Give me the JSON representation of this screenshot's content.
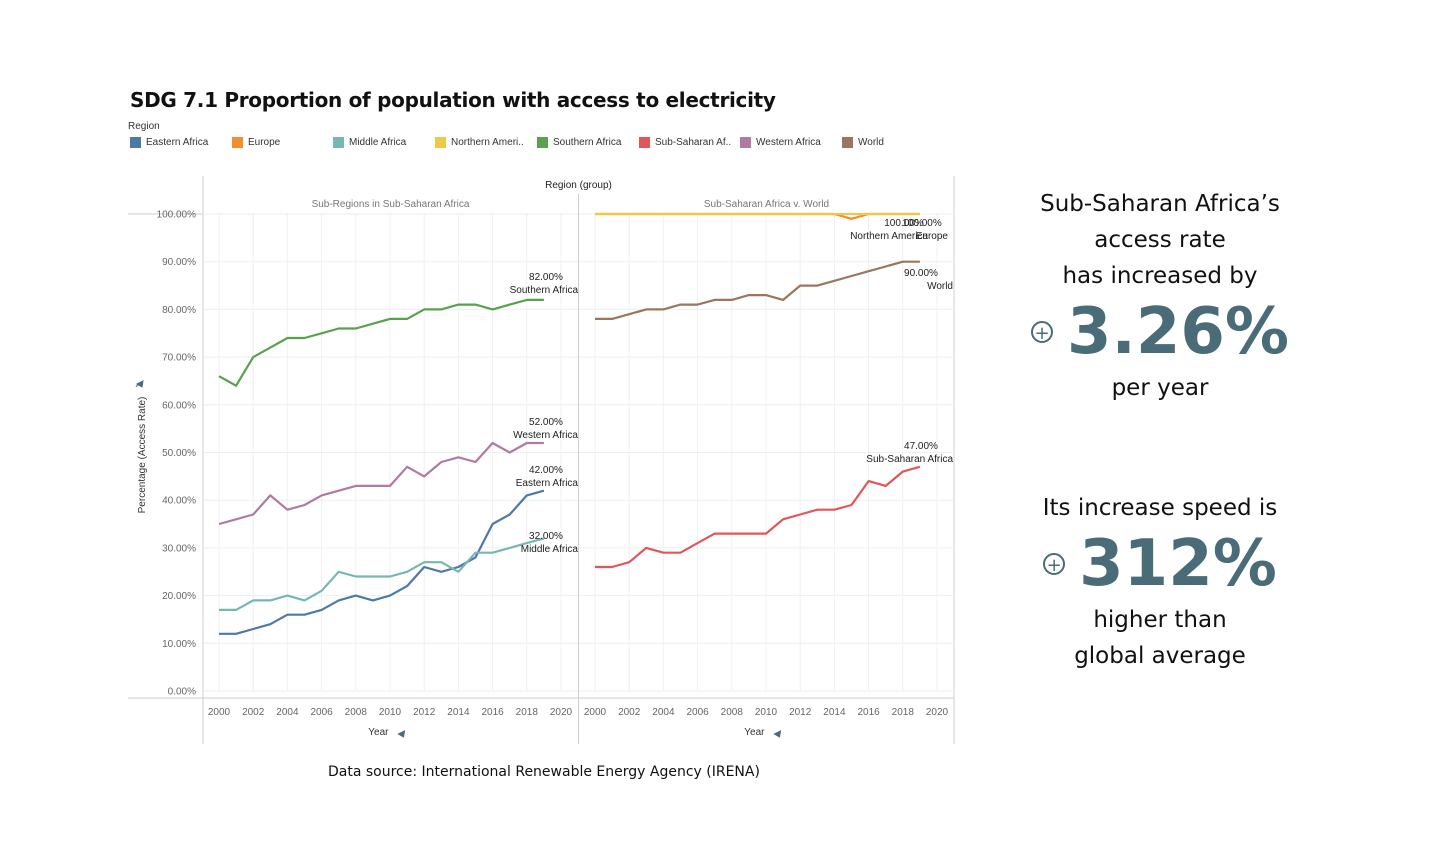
{
  "title": "SDG 7.1 Proportion of population with access to electricity",
  "legend": {
    "title": "Region",
    "items": [
      {
        "label": "Eastern Africa",
        "color": "#4e79a7"
      },
      {
        "label": "Europe",
        "color": "#f28e2b"
      },
      {
        "label": "Middle Africa",
        "color": "#76b7b2"
      },
      {
        "label": "Northern Ameri..",
        "color": "#edc948"
      },
      {
        "label": "Southern Africa",
        "color": "#59a14f"
      },
      {
        "label": "Sub-Saharan Af..",
        "color": "#e15759"
      },
      {
        "label": "Western Africa",
        "color": "#b07aa1"
      },
      {
        "label": "World",
        "color": "#9c755f"
      }
    ]
  },
  "chart_data": {
    "type": "line",
    "column_header": "Region (group)",
    "ylabel": "Percentage (Access Rate)",
    "xlabel": "Year",
    "ylim": [
      0,
      100
    ],
    "y_ticks": [
      "0.00%",
      "10.00%",
      "20.00%",
      "30.00%",
      "40.00%",
      "50.00%",
      "60.00%",
      "70.00%",
      "80.00%",
      "90.00%",
      "100.00%"
    ],
    "x_ticks": [
      "2000",
      "2002",
      "2004",
      "2006",
      "2008",
      "2010",
      "2012",
      "2014",
      "2016",
      "2018",
      "2020"
    ],
    "grid": true,
    "panels": [
      {
        "title": "Sub-Regions in Sub-Saharan Africa",
        "x": [
          2000,
          2001,
          2002,
          2003,
          2004,
          2005,
          2006,
          2007,
          2008,
          2009,
          2010,
          2011,
          2012,
          2013,
          2014,
          2015,
          2016,
          2017,
          2018,
          2019
        ],
        "series": [
          {
            "name": "Southern Africa",
            "color": "#59a14f",
            "label_value": "82.00%",
            "values": [
              66,
              64,
              70,
              72,
              74,
              74,
              75,
              76,
              76,
              77,
              78,
              78,
              80,
              80,
              81,
              81,
              80,
              81,
              82,
              82
            ]
          },
          {
            "name": "Western Africa",
            "color": "#b07aa1",
            "label_value": "52.00%",
            "values": [
              35,
              36,
              37,
              41,
              38,
              39,
              41,
              42,
              43,
              43,
              43,
              47,
              45,
              48,
              49,
              48,
              52,
              50,
              52,
              52
            ]
          },
          {
            "name": "Eastern Africa",
            "color": "#4e79a7",
            "label_value": "42.00%",
            "values": [
              12,
              12,
              13,
              14,
              16,
              16,
              17,
              19,
              20,
              19,
              20,
              22,
              26,
              25,
              26,
              28,
              35,
              37,
              41,
              42
            ]
          },
          {
            "name": "Middle Africa",
            "color": "#76b7b2",
            "label_value": "32.00%",
            "values": [
              17,
              17,
              19,
              19,
              20,
              19,
              21,
              25,
              24,
              24,
              24,
              25,
              27,
              27,
              25,
              29,
              29,
              30,
              31,
              32
            ]
          }
        ]
      },
      {
        "title": "Sub-Saharan Africa v. World",
        "x": [
          2000,
          2001,
          2002,
          2003,
          2004,
          2005,
          2006,
          2007,
          2008,
          2009,
          2010,
          2011,
          2012,
          2013,
          2014,
          2015,
          2016,
          2017,
          2018,
          2019
        ],
        "series": [
          {
            "name": "Europe",
            "color": "#f28e2b",
            "label_value": "100.00%",
            "values": [
              100,
              100,
              100,
              100,
              100,
              100,
              100,
              100,
              100,
              100,
              100,
              100,
              100,
              100,
              100,
              99,
              100,
              100,
              100,
              100
            ]
          },
          {
            "name": "Northern America",
            "color": "#edc948",
            "label_value": "100.00%",
            "values": [
              100,
              100,
              100,
              100,
              100,
              100,
              100,
              100,
              100,
              100,
              100,
              100,
              100,
              100,
              100,
              100,
              100,
              100,
              100,
              100
            ]
          },
          {
            "name": "World",
            "color": "#9c755f",
            "label_value": "90.00%",
            "values": [
              78,
              78,
              79,
              80,
              80,
              81,
              81,
              82,
              82,
              83,
              83,
              82,
              85,
              85,
              86,
              87,
              88,
              89,
              90,
              90
            ]
          },
          {
            "name": "Sub-Saharan Africa",
            "color": "#e15759",
            "label_value": "47.00%",
            "values": [
              26,
              26,
              27,
              30,
              29,
              29,
              31,
              33,
              33,
              33,
              33,
              36,
              37,
              38,
              38,
              39,
              44,
              43,
              46,
              47
            ]
          }
        ]
      }
    ]
  },
  "source": "Data source: International Renewable Energy Agency (IRENA)",
  "insight": {
    "line1": "Sub-Saharan Africa’s",
    "line2": "access rate",
    "line3": "has increased by",
    "value1": "3.26%",
    "line4": "per year",
    "line5": "Its increase speed is",
    "value2": "312%",
    "line6": "higher than",
    "line7": "global average"
  }
}
